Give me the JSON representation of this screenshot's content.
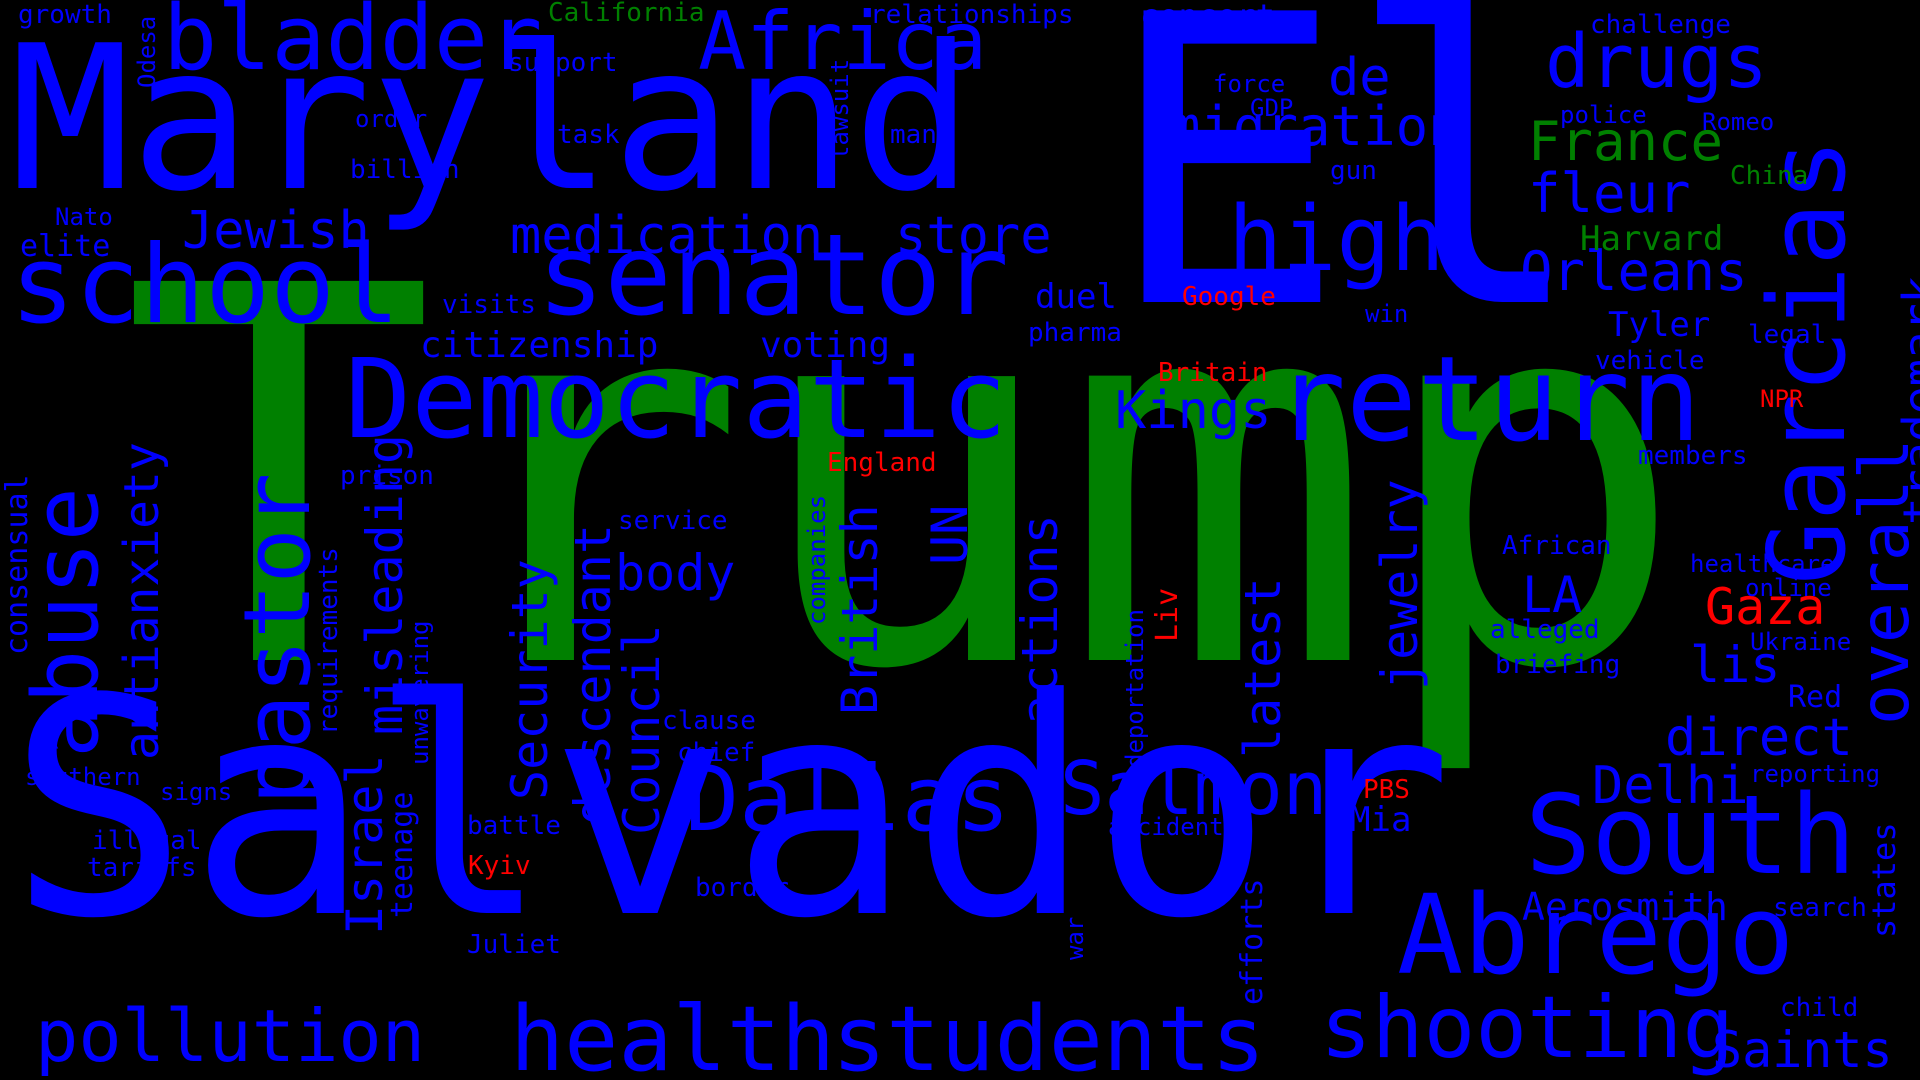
{
  "colors": {
    "background": "#000000",
    "blue": "#0000ff",
    "green": "#008000",
    "red": "#ff0000"
  },
  "words": [
    {
      "text": "Trump",
      "color": "green"
    },
    {
      "text": "Salvador",
      "color": "blue"
    },
    {
      "text": "El",
      "color": "blue"
    },
    {
      "text": "Maryland",
      "color": "blue"
    },
    {
      "text": "Garcias",
      "color": "blue"
    },
    {
      "text": "return",
      "color": "blue"
    },
    {
      "text": "Democratic",
      "color": "blue"
    },
    {
      "text": "senator",
      "color": "blue"
    },
    {
      "text": "school",
      "color": "blue"
    },
    {
      "text": "bladder",
      "color": "blue"
    },
    {
      "text": "Africa",
      "color": "blue"
    },
    {
      "text": "abuse",
      "color": "blue"
    },
    {
      "text": "pastor",
      "color": "blue"
    },
    {
      "text": "South",
      "color": "blue"
    },
    {
      "text": "Abrego",
      "color": "blue"
    },
    {
      "text": "health",
      "color": "blue"
    },
    {
      "text": "students",
      "color": "blue"
    },
    {
      "text": "shooting",
      "color": "blue"
    },
    {
      "text": "pollution",
      "color": "blue"
    },
    {
      "text": "Dallas",
      "color": "blue"
    },
    {
      "text": "Salmon",
      "color": "blue"
    },
    {
      "text": "high",
      "color": "blue"
    },
    {
      "text": "drugs",
      "color": "blue"
    },
    {
      "text": "overall",
      "color": "blue"
    },
    {
      "text": "trademark",
      "color": "blue"
    },
    {
      "text": "migration",
      "color": "blue"
    },
    {
      "text": "France",
      "color": "green"
    },
    {
      "text": "fleur",
      "color": "blue"
    },
    {
      "text": "Orleans",
      "color": "blue"
    },
    {
      "text": "medication",
      "color": "blue"
    },
    {
      "text": "store",
      "color": "blue"
    },
    {
      "text": "Jewish",
      "color": "blue"
    },
    {
      "text": "Kings",
      "color": "blue"
    },
    {
      "text": "de",
      "color": "blue"
    },
    {
      "text": "antianxiety",
      "color": "blue"
    },
    {
      "text": "misleading",
      "color": "blue"
    },
    {
      "text": "Israel",
      "color": "blue"
    },
    {
      "text": "Security",
      "color": "blue"
    },
    {
      "text": "Council",
      "color": "blue"
    },
    {
      "text": "descendant",
      "color": "blue"
    },
    {
      "text": "British",
      "color": "blue"
    },
    {
      "text": "UN",
      "color": "blue"
    },
    {
      "text": "actions",
      "color": "blue"
    },
    {
      "text": "jewelry",
      "color": "blue"
    },
    {
      "text": "latest",
      "color": "blue"
    },
    {
      "text": "body",
      "color": "blue"
    },
    {
      "text": "LA",
      "color": "blue"
    },
    {
      "text": "Gaza",
      "color": "red"
    },
    {
      "text": "lis",
      "color": "blue"
    },
    {
      "text": "direct",
      "color": "blue"
    },
    {
      "text": "Delhi",
      "color": "blue"
    },
    {
      "text": "Saints",
      "color": "blue"
    },
    {
      "text": "Aerosmith",
      "color": "blue"
    },
    {
      "text": "citizenship",
      "color": "blue"
    },
    {
      "text": "voting",
      "color": "blue"
    },
    {
      "text": "duel",
      "color": "blue"
    },
    {
      "text": "pharma",
      "color": "blue"
    },
    {
      "text": "Google",
      "color": "red"
    },
    {
      "text": "Britain",
      "color": "red"
    },
    {
      "text": "England",
      "color": "red"
    },
    {
      "text": "NPR",
      "color": "red"
    },
    {
      "text": "Liv",
      "color": "red"
    },
    {
      "text": "PBS",
      "color": "red"
    },
    {
      "text": "Kyiv",
      "color": "red"
    },
    {
      "text": "Harvard",
      "color": "green"
    },
    {
      "text": "China",
      "color": "green"
    },
    {
      "text": "California",
      "color": "green"
    },
    {
      "text": "Tyler",
      "color": "blue"
    },
    {
      "text": "Mia",
      "color": "blue"
    },
    {
      "text": "Red",
      "color": "blue"
    },
    {
      "text": "teenage",
      "color": "blue"
    },
    {
      "text": "efforts",
      "color": "blue"
    },
    {
      "text": "consensual",
      "color": "blue"
    },
    {
      "text": "requirements",
      "color": "blue"
    },
    {
      "text": "unwavering",
      "color": "blue"
    },
    {
      "text": "companies",
      "color": "blue"
    },
    {
      "text": "deportation",
      "color": "blue"
    },
    {
      "text": "lawsuit",
      "color": "blue"
    },
    {
      "text": "Odesa",
      "color": "blue"
    },
    {
      "text": "states",
      "color": "blue"
    },
    {
      "text": "growth",
      "color": "blue"
    },
    {
      "text": "relationships",
      "color": "blue"
    },
    {
      "text": "concert",
      "color": "blue"
    },
    {
      "text": "challenge",
      "color": "blue"
    },
    {
      "text": "support",
      "color": "blue"
    },
    {
      "text": "force",
      "color": "blue"
    },
    {
      "text": "GDP",
      "color": "blue"
    },
    {
      "text": "order",
      "color": "blue"
    },
    {
      "text": "task",
      "color": "blue"
    },
    {
      "text": "man",
      "color": "blue"
    },
    {
      "text": "police",
      "color": "blue"
    },
    {
      "text": "Romeo",
      "color": "blue"
    },
    {
      "text": "billion",
      "color": "blue"
    },
    {
      "text": "gun",
      "color": "blue"
    },
    {
      "text": "Nato",
      "color": "blue"
    },
    {
      "text": "elite",
      "color": "blue"
    },
    {
      "text": "visits",
      "color": "blue"
    },
    {
      "text": "win",
      "color": "blue"
    },
    {
      "text": "legal",
      "color": "blue"
    },
    {
      "text": "vehicle",
      "color": "blue"
    },
    {
      "text": "members",
      "color": "blue"
    },
    {
      "text": "prison",
      "color": "blue"
    },
    {
      "text": "service",
      "color": "blue"
    },
    {
      "text": "African",
      "color": "blue"
    },
    {
      "text": "healthcare",
      "color": "blue"
    },
    {
      "text": "online",
      "color": "blue"
    },
    {
      "text": "alleged",
      "color": "blue"
    },
    {
      "text": "Ukraine",
      "color": "blue"
    },
    {
      "text": "briefing",
      "color": "blue"
    },
    {
      "text": "clause",
      "color": "blue"
    },
    {
      "text": "chief",
      "color": "blue"
    },
    {
      "text": "southern",
      "color": "blue"
    },
    {
      "text": "signs",
      "color": "blue"
    },
    {
      "text": "reporting",
      "color": "blue"
    },
    {
      "text": "battle",
      "color": "blue"
    },
    {
      "text": "accident",
      "color": "blue"
    },
    {
      "text": "illegal",
      "color": "blue"
    },
    {
      "text": "tariffs",
      "color": "blue"
    },
    {
      "text": "border",
      "color": "blue"
    },
    {
      "text": "search",
      "color": "blue"
    },
    {
      "text": "Juliet",
      "color": "blue"
    },
    {
      "text": "war",
      "color": "blue"
    },
    {
      "text": "child",
      "color": "blue"
    }
  ]
}
